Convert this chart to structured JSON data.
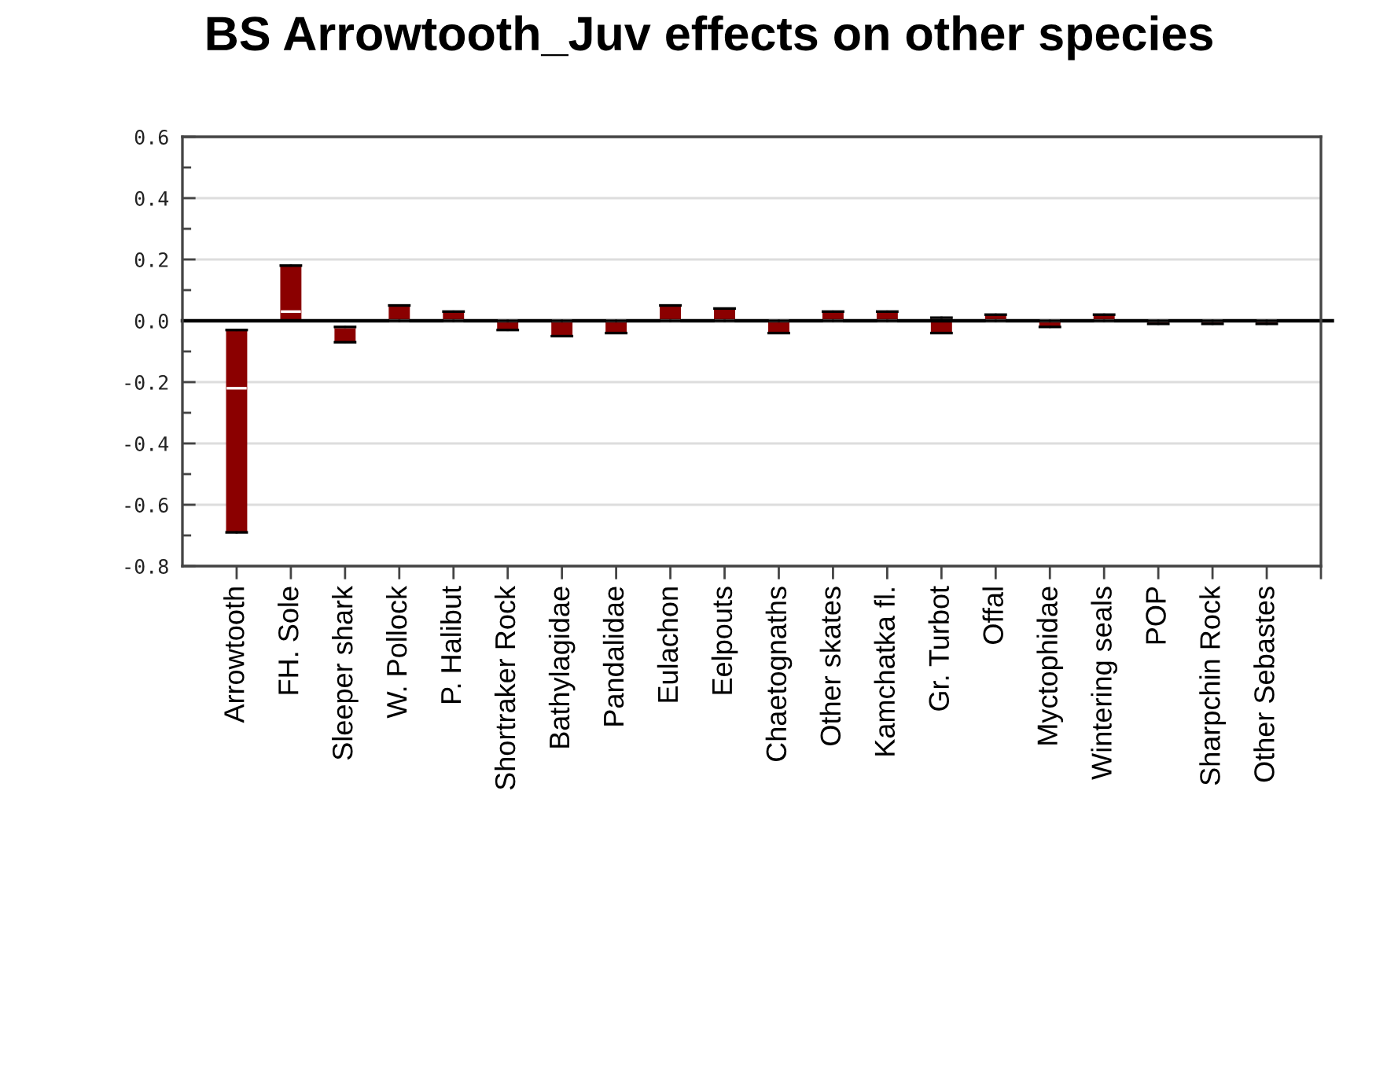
{
  "chart_data": {
    "type": "box",
    "title": "BS Arrowtooth_Juv effects on other species",
    "categories": [
      "Arrowtooth",
      "FH. Sole",
      "Sleeper shark",
      "W. Pollock",
      "P. Halibut",
      "Shortraker Rock",
      "Bathylagidae",
      "Pandalidae",
      "Eulachon",
      "Eelpouts",
      "Chaetognaths",
      "Other skates",
      "Kamchatka fl.",
      "Gr. Turbot",
      "Offal",
      "Myctophidae",
      "Wintering seals",
      "POP",
      "Sharpchin Rock",
      "Other Sebastes"
    ],
    "boxes": [
      {
        "low": -0.69,
        "q1": -0.69,
        "median": -0.22,
        "q3": -0.03,
        "high": -0.03
      },
      {
        "low": 0.0,
        "q1": 0.0,
        "median": 0.03,
        "q3": 0.18,
        "high": 0.18
      },
      {
        "low": -0.07,
        "q1": -0.07,
        "median": -0.02,
        "q3": -0.02,
        "high": -0.02
      },
      {
        "low": 0.0,
        "q1": 0.0,
        "median": 0.0,
        "q3": 0.05,
        "high": 0.05
      },
      {
        "low": 0.0,
        "q1": 0.0,
        "median": 0.0,
        "q3": 0.03,
        "high": 0.03
      },
      {
        "low": -0.03,
        "q1": -0.03,
        "median": 0.0,
        "q3": 0.0,
        "high": 0.0
      },
      {
        "low": -0.05,
        "q1": -0.05,
        "median": 0.0,
        "q3": 0.0,
        "high": 0.0
      },
      {
        "low": -0.04,
        "q1": -0.04,
        "median": 0.0,
        "q3": 0.0,
        "high": 0.0
      },
      {
        "low": 0.0,
        "q1": 0.0,
        "median": 0.0,
        "q3": 0.05,
        "high": 0.05
      },
      {
        "low": 0.0,
        "q1": 0.0,
        "median": 0.0,
        "q3": 0.04,
        "high": 0.04
      },
      {
        "low": -0.04,
        "q1": -0.04,
        "median": 0.0,
        "q3": 0.0,
        "high": 0.0
      },
      {
        "low": 0.0,
        "q1": 0.0,
        "median": 0.0,
        "q3": 0.03,
        "high": 0.03
      },
      {
        "low": 0.0,
        "q1": 0.0,
        "median": 0.0,
        "q3": 0.03,
        "high": 0.03
      },
      {
        "low": -0.04,
        "q1": -0.04,
        "median": 0.01,
        "q3": 0.01,
        "high": 0.01
      },
      {
        "low": 0.0,
        "q1": 0.0,
        "median": 0.0,
        "q3": 0.02,
        "high": 0.02
      },
      {
        "low": -0.02,
        "q1": -0.02,
        "median": 0.0,
        "q3": 0.0,
        "high": 0.0
      },
      {
        "low": 0.0,
        "q1": 0.0,
        "median": 0.0,
        "q3": 0.02,
        "high": 0.02
      },
      {
        "low": -0.01,
        "q1": -0.01,
        "median": 0.0,
        "q3": 0.0,
        "high": 0.0
      },
      {
        "low": -0.01,
        "q1": -0.01,
        "median": 0.0,
        "q3": 0.0,
        "high": 0.0
      },
      {
        "low": -0.01,
        "q1": -0.01,
        "median": 0.0,
        "q3": 0.0,
        "high": 0.0
      }
    ],
    "color": "#8b0000",
    "ylim": [
      -0.8,
      0.6
    ],
    "yticks": [
      -0.8,
      {
        "value": -0.7,
        "label": null
      },
      -0.6,
      {
        "value": -0.5,
        "label": null
      },
      -0.4,
      {
        "value": -0.3,
        "label": null
      },
      -0.2,
      {
        "value": -0.1,
        "label": null
      },
      {
        "value": 0,
        "label": "0.0"
      },
      {
        "value": 0.1,
        "label": null
      },
      0.2,
      {
        "value": 0.3,
        "label": null
      },
      0.4,
      {
        "value": 0.5,
        "label": null
      },
      0.6
    ],
    "grid": "y",
    "ref_lines": [
      {
        "axis": "y",
        "value": 0,
        "color": "#000000"
      }
    ]
  }
}
